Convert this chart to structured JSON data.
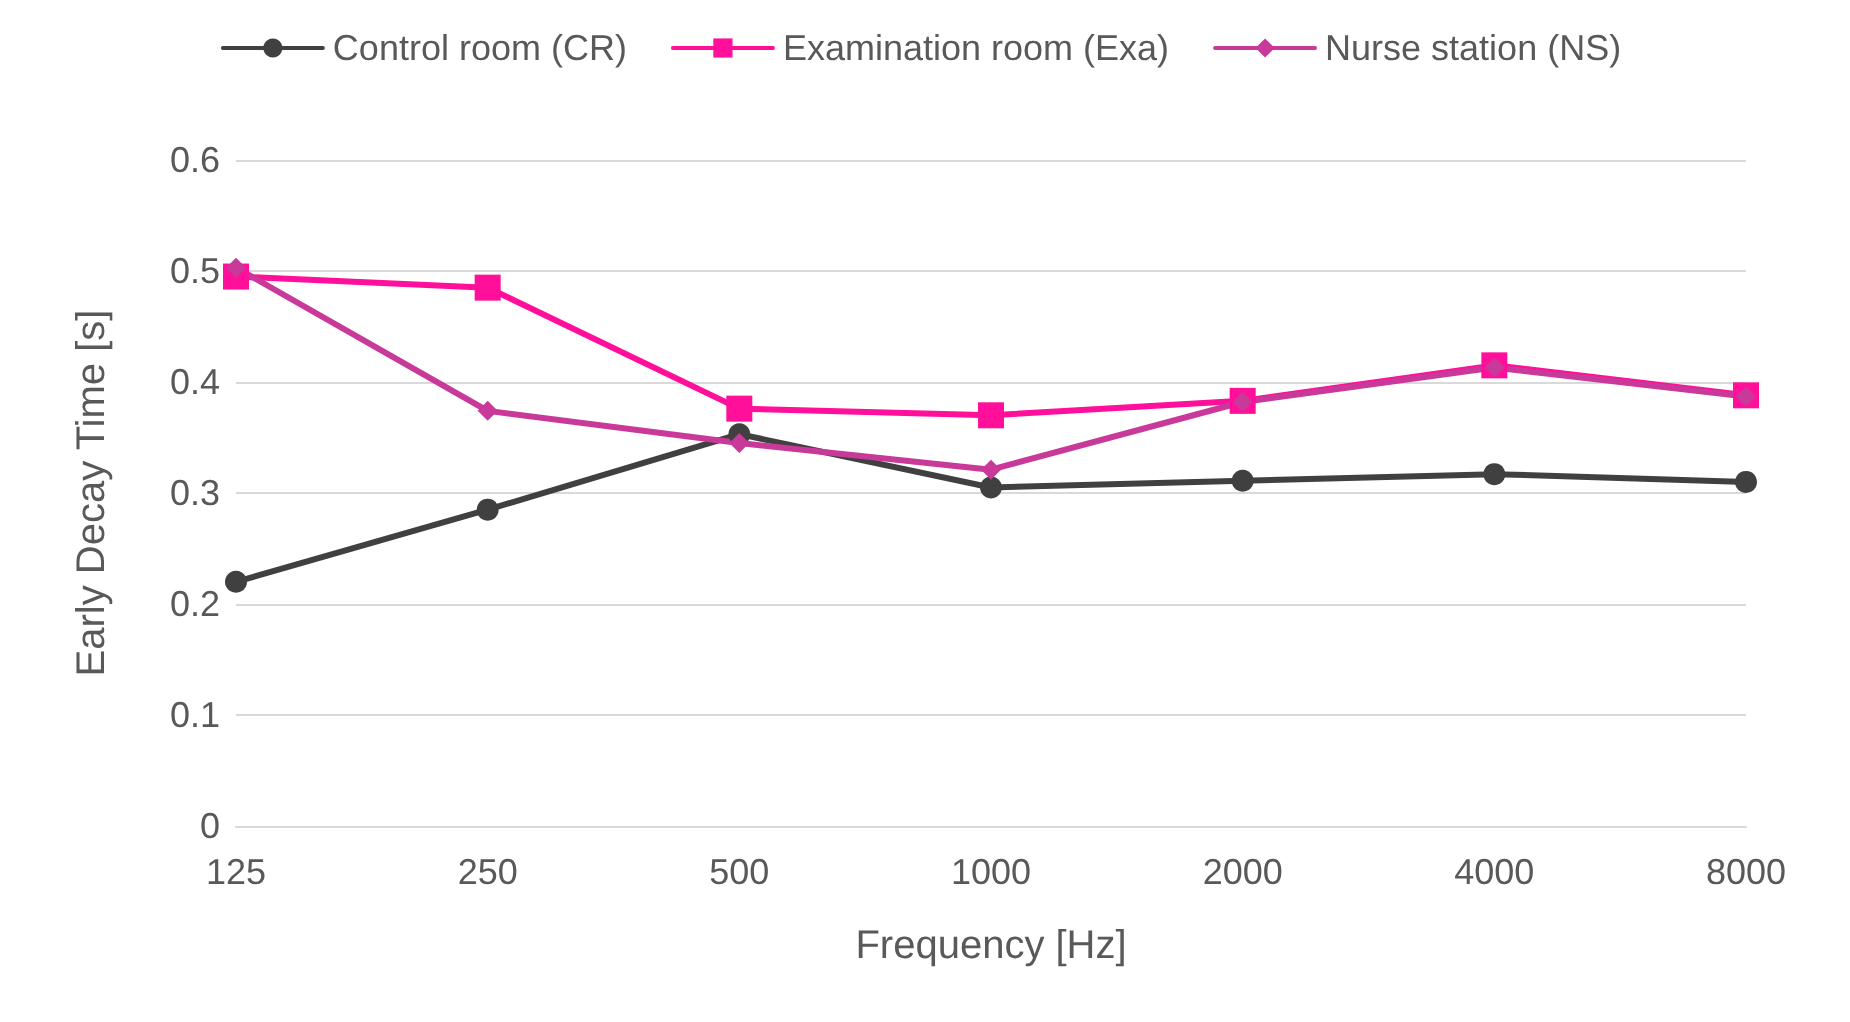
{
  "chart_data": {
    "type": "line",
    "xlabel": "Frequency [Hz]",
    "ylabel": "Early Decay Time [s]",
    "categories": [
      "125",
      "250",
      "500",
      "1000",
      "2000",
      "4000",
      "8000"
    ],
    "series": [
      {
        "name": "Control room (CR)",
        "color": "#404040",
        "marker": "circle",
        "values": [
          0.22,
          0.285,
          0.353,
          0.305,
          0.311,
          0.317,
          0.31
        ]
      },
      {
        "name": "Examination room (Exa)",
        "color": "#ff0f9a",
        "marker": "square",
        "values": [
          0.495,
          0.485,
          0.376,
          0.37,
          0.383,
          0.415,
          0.388
        ]
      },
      {
        "name": "Nurse station (NS)",
        "color": "#c8399a",
        "marker": "diamond",
        "values": [
          0.503,
          0.374,
          0.345,
          0.321,
          0.382,
          0.413,
          0.387
        ]
      }
    ],
    "ylim": [
      0,
      0.6
    ],
    "yticks": [
      0,
      0.1,
      0.2,
      0.3,
      0.4,
      0.5,
      0.6
    ],
    "grid": "y",
    "legend": "top",
    "line_style": "solid"
  }
}
